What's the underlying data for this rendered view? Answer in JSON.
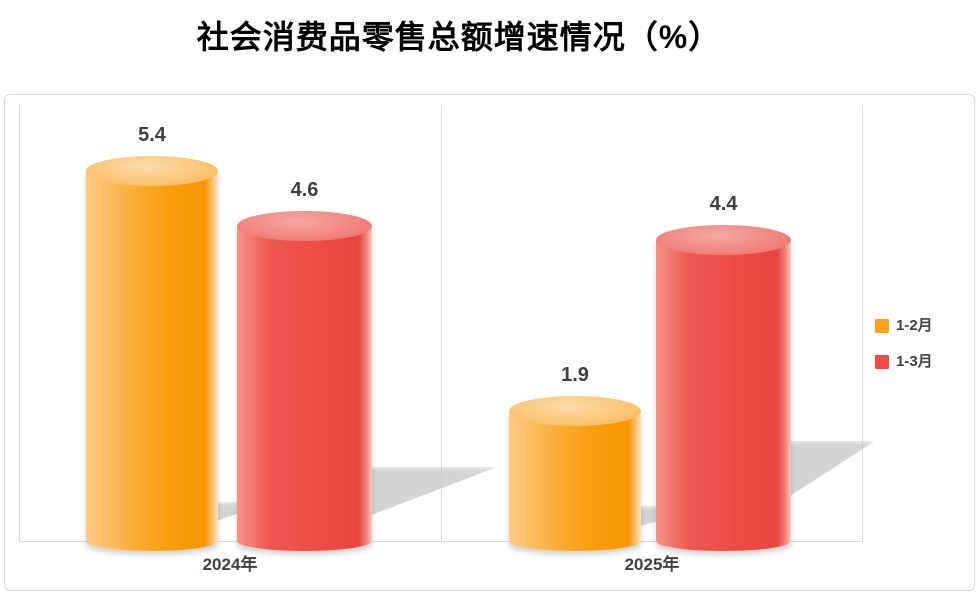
{
  "chart_data": {
    "type": "bar",
    "subtype": "3d-cylinder",
    "title": "社会消费品零售总额增速情况（%）",
    "categories": [
      "2024年",
      "2025年"
    ],
    "series": [
      {
        "name": "1-2月",
        "color": "#FAA21C",
        "values": [
          5.4,
          1.9
        ]
      },
      {
        "name": "1-3月",
        "color": "#ED4C46",
        "values": [
          4.6,
          4.4
        ]
      }
    ],
    "data_labels_visible": true,
    "data_label_values": [
      "5.4",
      "4.6",
      "1.9",
      "4.4"
    ],
    "ylim": [
      0,
      6.4
    ],
    "y_axis_visible": false,
    "legend_position": "right",
    "gridlines": "vertical category divider",
    "colors": {
      "title": "#000000",
      "data_label": "#3F3F3F",
      "axis_label": "#404040",
      "frame_border": "#D9D9D9",
      "shadow": "#C6C6C6",
      "background": "#FFFFFF"
    }
  }
}
